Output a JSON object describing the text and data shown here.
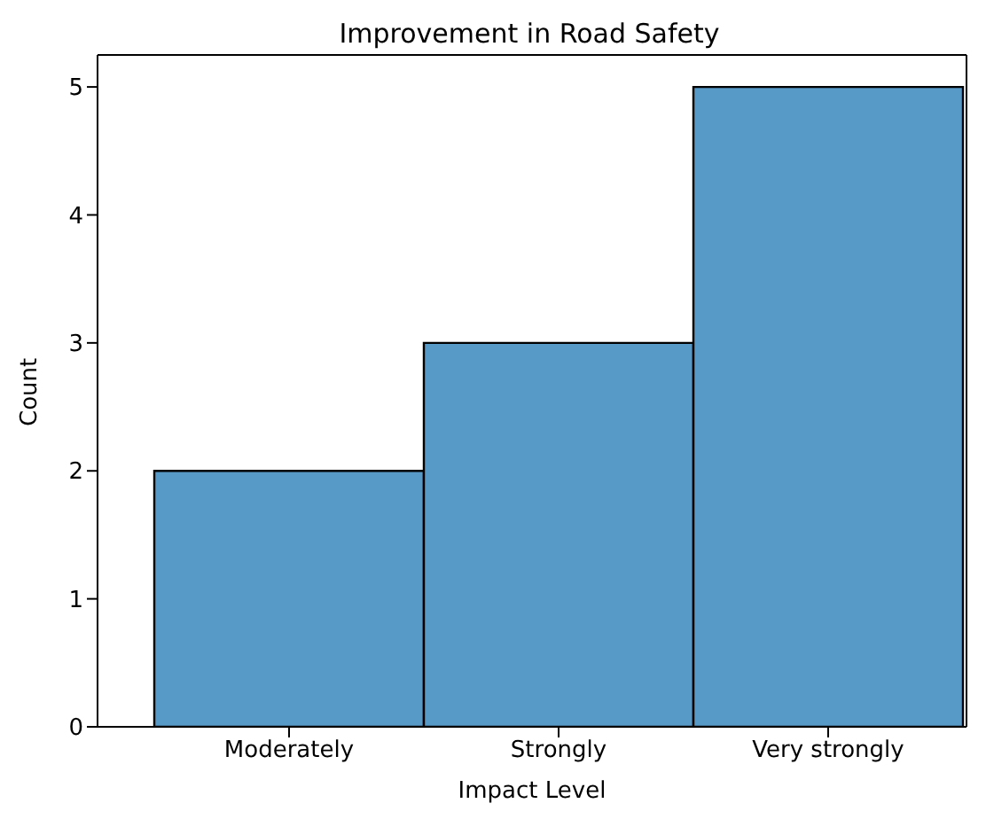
{
  "chart_data": {
    "type": "bar",
    "title": "Improvement in Road Safety",
    "xlabel": "Impact Level",
    "ylabel": "Count",
    "categories": [
      "Moderately",
      "Strongly",
      "Very strongly"
    ],
    "values": [
      2,
      3,
      5
    ],
    "color": "#5799c7",
    "ylim": [
      0,
      5.25
    ],
    "yticks": [
      0,
      1,
      2,
      3,
      4,
      5
    ]
  }
}
